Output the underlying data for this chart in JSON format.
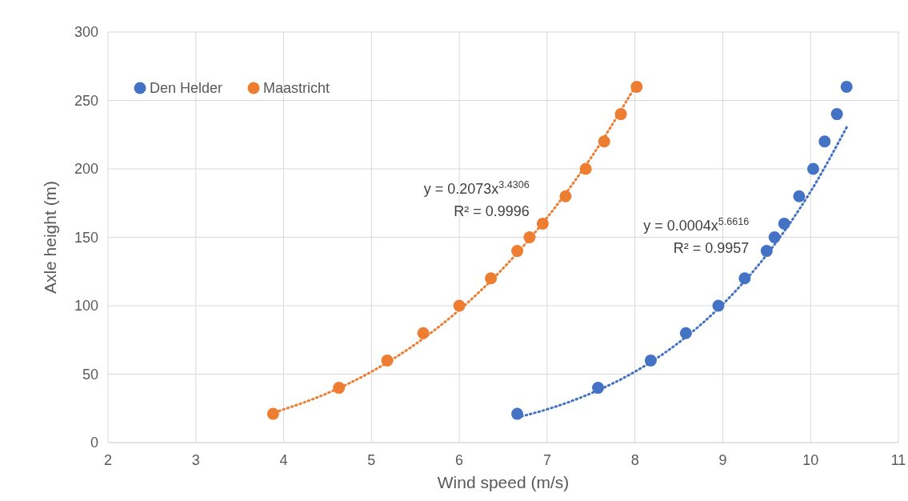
{
  "chart_data": {
    "type": "scatter",
    "xlabel": "Wind speed (m/s)",
    "ylabel": "Axle height (m)",
    "xlim": [
      2,
      11
    ],
    "xticks": [
      2,
      3,
      4,
      5,
      6,
      7,
      8,
      9,
      10,
      11
    ],
    "ylim": [
      0,
      300
    ],
    "yticks": [
      0,
      50,
      100,
      150,
      200,
      250,
      300
    ],
    "grid": true,
    "legend": "top left",
    "marker": "circle",
    "series": [
      {
        "name": "Den Helder",
        "color": "#4472c4",
        "x": [
          6.66,
          7.58,
          8.18,
          8.58,
          8.95,
          9.25,
          9.5,
          9.59,
          9.7,
          9.87,
          10.03,
          10.16,
          10.3,
          10.41
        ],
        "values": [
          21,
          40,
          60,
          80,
          100,
          120,
          140,
          150,
          160,
          180,
          200,
          220,
          240,
          260
        ]
      },
      {
        "name": "Maastricht",
        "color": "#ed7d31",
        "x": [
          3.88,
          4.63,
          5.18,
          5.59,
          6.0,
          6.36,
          6.66,
          6.8,
          6.95,
          7.21,
          7.44,
          7.65,
          7.84,
          8.02
        ],
        "values": [
          21,
          40,
          60,
          80,
          100,
          120,
          140,
          150,
          160,
          180,
          200,
          220,
          240,
          260
        ]
      },
      {
        "type": "line",
        "line_style": "dotted",
        "marker": "none",
        "color": "#ed7d31",
        "x": [
          3.9,
          4.5,
          5,
          5.5,
          6,
          6.5,
          7,
          7.5,
          8.02
        ],
        "values": [
          22.1,
          36.1,
          51.8,
          71.9,
          96.9,
          127.4,
          164.4,
          208.2,
          262
        ]
      },
      {
        "type": "line",
        "line_style": "dotted",
        "marker": "none",
        "color": "#4472c4",
        "x": [
          6.66,
          7,
          7.5,
          8,
          8.5,
          9,
          9.5,
          10,
          10.42
        ],
        "values": [
          18.4,
          24.3,
          36,
          51.8,
          73.1,
          101.1,
          137.2,
          183.4,
          231.5
        ]
      }
    ],
    "annotations": [
      "y = 0.2073x$^{3.4306}$",
      "R² = 0.9996",
      "y = 0.0004x$^{5.6616}$",
      "R² = 0.9957"
    ]
  }
}
